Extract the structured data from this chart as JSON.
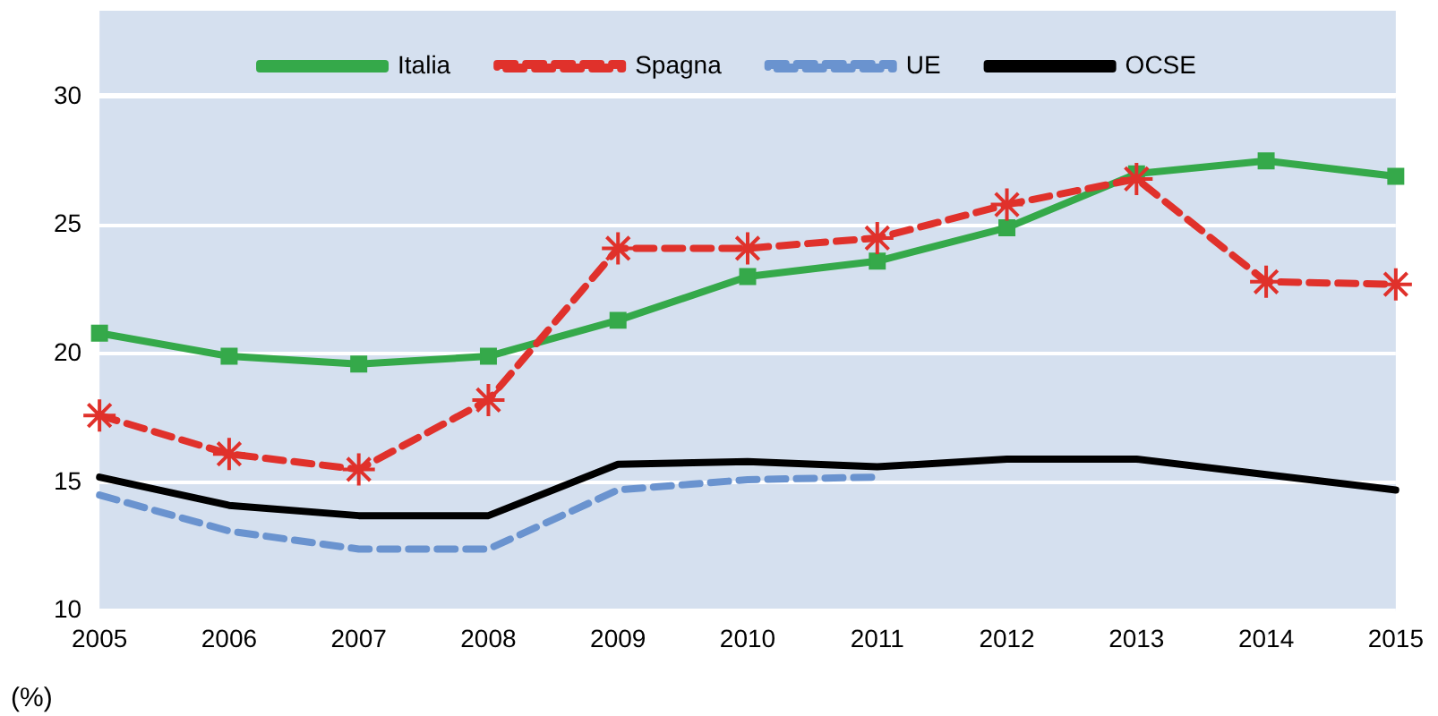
{
  "chart_data": {
    "type": "line",
    "ylabel": "(%)",
    "categories": [
      "2005",
      "2006",
      "2007",
      "2008",
      "2009",
      "2010",
      "2011",
      "2012",
      "2013",
      "2014",
      "2015"
    ],
    "series": [
      {
        "name": "Italia",
        "color": "#35a94a",
        "marker": "square",
        "line_style": "solid",
        "values": [
          20.8,
          19.9,
          19.6,
          19.9,
          21.3,
          23.0,
          23.6,
          24.9,
          27.0,
          27.5,
          26.9
        ]
      },
      {
        "name": "Spagna",
        "color": "#e0312b",
        "marker": "cross",
        "line_style": "dashed",
        "values": [
          17.6,
          16.1,
          15.5,
          18.2,
          24.1,
          24.1,
          24.5,
          25.8,
          26.8,
          22.8,
          22.7
        ]
      },
      {
        "name": "UE",
        "color": "#6a93cf",
        "marker": "none",
        "line_style": "dashed",
        "values": [
          14.5,
          13.1,
          12.4,
          12.4,
          14.7,
          15.1,
          15.2,
          null,
          null,
          null,
          null
        ]
      },
      {
        "name": "OCSE",
        "color": "#000000",
        "marker": "none",
        "line_style": "solid",
        "values": [
          15.2,
          14.1,
          13.7,
          13.7,
          15.7,
          15.8,
          15.6,
          15.9,
          15.9,
          15.3,
          14.7
        ]
      }
    ],
    "ylim": [
      10,
      30
    ],
    "yticks": [
      10,
      15,
      20,
      25,
      30
    ],
    "grid": "y",
    "legend": "top"
  }
}
